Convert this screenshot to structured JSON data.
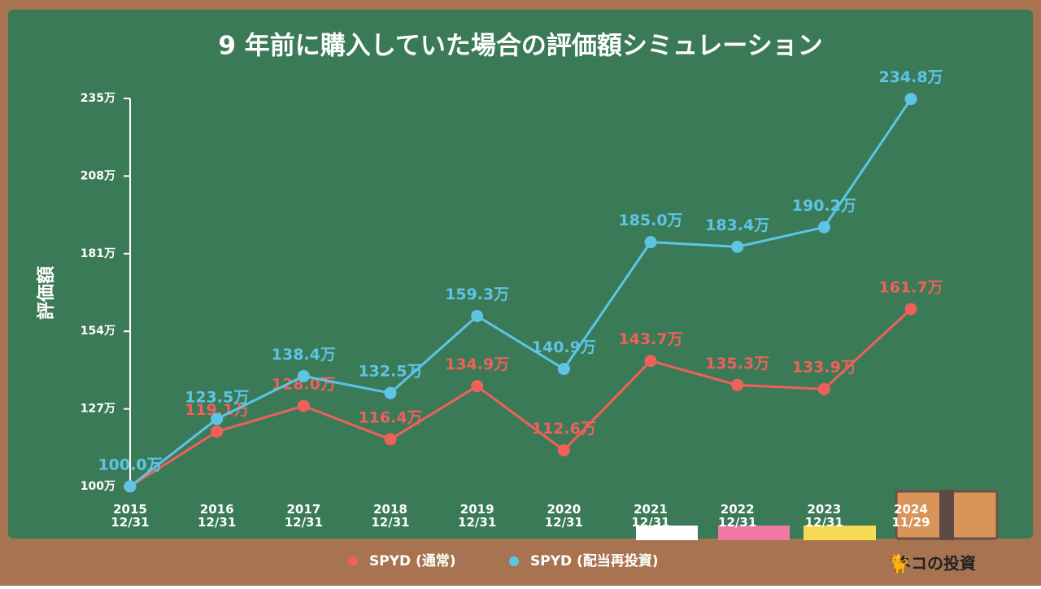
{
  "chart_data": {
    "type": "line",
    "title": "9 年前に購入していた場合の評価額シミュレーション",
    "y_label": "評価額",
    "categories": [
      "2015\n12/31",
      "2016\n12/31",
      "2017\n12/31",
      "2018\n12/31",
      "2019\n12/31",
      "2020\n12/31",
      "2021\n12/31",
      "2022\n12/31",
      "2023\n12/31",
      "2024\n11/29"
    ],
    "series": [
      {
        "name": "SPYD (通常)",
        "color": "#f0605a",
        "values": [
          100.0,
          119.1,
          128.0,
          116.4,
          134.9,
          112.6,
          143.7,
          135.3,
          133.9,
          161.7
        ],
        "value_labels": [
          null,
          "119.1万",
          "128.0万",
          "116.4万",
          "134.9万",
          "112.6万",
          "143.7万",
          "135.3万",
          "133.9万",
          "161.7万"
        ]
      },
      {
        "name": "SPYD (配当再投資)",
        "color": "#5ec4e6",
        "values": [
          100.0,
          123.5,
          138.4,
          132.5,
          159.3,
          140.9,
          185.0,
          183.4,
          190.2,
          234.8
        ],
        "value_labels": [
          "100.0万",
          "123.5万",
          "138.4万",
          "132.5万",
          "159.3万",
          "140.9万",
          "185.0万",
          "183.4万",
          "190.2万",
          "234.8万"
        ]
      }
    ],
    "ylim": [
      100,
      235
    ],
    "yticks": [
      {
        "value": 100,
        "label": "100万"
      },
      {
        "value": 127,
        "label": "127万"
      },
      {
        "value": 154,
        "label": "154万"
      },
      {
        "value": 181,
        "label": "181万"
      },
      {
        "value": 208,
        "label": "208万"
      },
      {
        "value": 235,
        "label": "235万"
      }
    ],
    "brand": "ネコの投資"
  }
}
